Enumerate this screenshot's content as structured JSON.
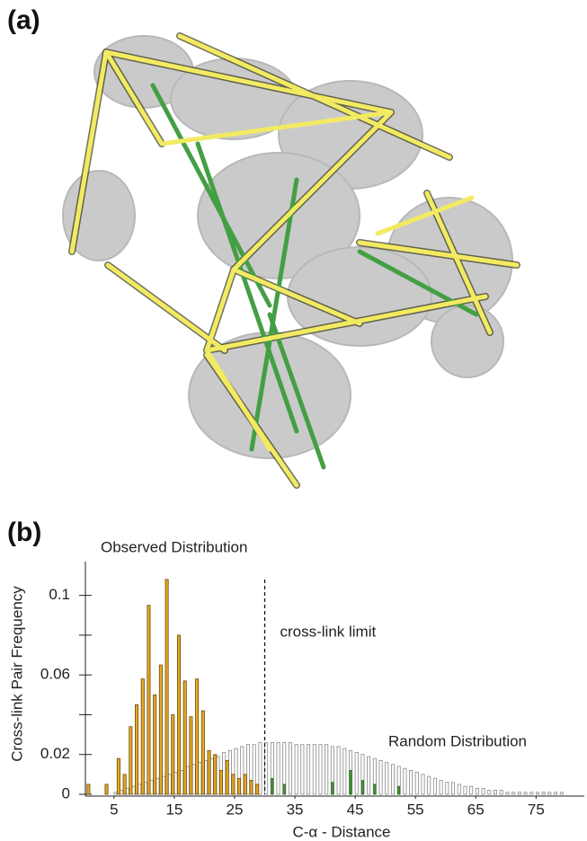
{
  "panel_labels": [
    "(a)",
    "(b)"
  ],
  "chart_data": {
    "type": "bar",
    "xlabel": "C-α - Distance",
    "ylabel": "Cross-link Pair Frequency",
    "xlim": [
      1,
      83
    ],
    "xticks": [
      5,
      15,
      25,
      35,
      45,
      55,
      65,
      75
    ],
    "ylim": [
      0,
      0.117
    ],
    "yticks": [
      0,
      0.02,
      {
        "value": 0.04,
        "label": null
      },
      0.06,
      {
        "value": 0.08,
        "label": null
      },
      0.1
    ],
    "limit": {
      "value": 30,
      "label": "cross-link limit"
    },
    "series": [
      {
        "name": "Observed Distribution",
        "color": "#e6a823",
        "x": [
          1,
          4,
          6,
          7,
          8,
          9,
          10,
          11,
          12,
          13,
          14,
          15,
          16,
          17,
          18,
          19,
          20,
          21,
          22,
          23,
          24,
          25,
          26,
          27,
          28,
          29
        ],
        "values": [
          0.005,
          0.005,
          0.018,
          0.01,
          0.034,
          0.045,
          0.058,
          0.095,
          0.05,
          0.065,
          0.108,
          0.04,
          0.08,
          0.057,
          0.039,
          0.058,
          0.042,
          0.022,
          0.02,
          0.012,
          0.017,
          0.01,
          0.008,
          0.01,
          0.007,
          0.005
        ]
      },
      {
        "name": "Random Distribution",
        "color": "#ffffff",
        "x": [
          5,
          6,
          7,
          8,
          9,
          10,
          11,
          12,
          13,
          14,
          15,
          16,
          17,
          18,
          19,
          20,
          21,
          22,
          23,
          24,
          25,
          26,
          27,
          28,
          29,
          30,
          31,
          32,
          33,
          34,
          35,
          36,
          37,
          38,
          39,
          40,
          41,
          42,
          43,
          44,
          45,
          46,
          47,
          48,
          49,
          50,
          51,
          52,
          53,
          54,
          55,
          56,
          57,
          58,
          59,
          60,
          61,
          62,
          63,
          64,
          65,
          66,
          67,
          68,
          69,
          70,
          71,
          72,
          73,
          74,
          75,
          76,
          77,
          78,
          79
        ],
        "values": [
          0.001,
          0.002,
          0.003,
          0.004,
          0.005,
          0.006,
          0.007,
          0.008,
          0.009,
          0.01,
          0.011,
          0.012,
          0.014,
          0.015,
          0.016,
          0.017,
          0.018,
          0.019,
          0.021,
          0.022,
          0.023,
          0.024,
          0.025,
          0.025,
          0.026,
          0.026,
          0.026,
          0.026,
          0.026,
          0.026,
          0.025,
          0.025,
          0.025,
          0.025,
          0.025,
          0.025,
          0.024,
          0.024,
          0.023,
          0.022,
          0.021,
          0.02,
          0.019,
          0.018,
          0.017,
          0.016,
          0.015,
          0.014,
          0.013,
          0.012,
          0.011,
          0.01,
          0.009,
          0.008,
          0.007,
          0.006,
          0.006,
          0.005,
          0.004,
          0.004,
          0.003,
          0.003,
          0.002,
          0.002,
          0.002,
          0.001,
          0.001,
          0.001,
          0.001,
          0.001,
          0.001,
          0.001,
          0.001,
          0.001,
          0.001
        ]
      },
      {
        "color": "#4a9a3a",
        "x": [
          31,
          33,
          41,
          44,
          46,
          48,
          52
        ],
        "values": [
          0.008,
          0.005,
          0.006,
          0.012,
          0.007,
          0.005,
          0.004
        ]
      }
    ]
  }
}
